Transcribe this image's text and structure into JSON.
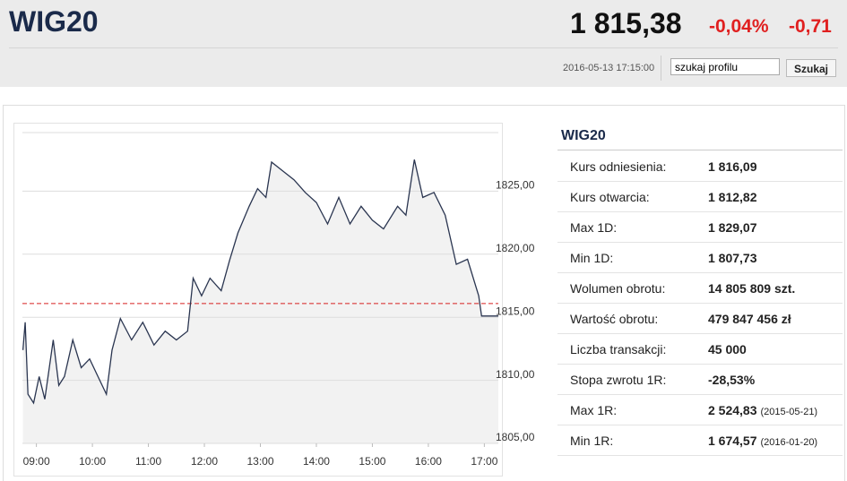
{
  "header": {
    "title": "WIG20",
    "price": "1 815,38",
    "change_pct": "-0,04%",
    "change_abs": "-0,71",
    "timestamp": "2016-05-13 17:15:00",
    "search_value": "szukaj profilu",
    "search_button": "Szukaj"
  },
  "chart_data": {
    "type": "line",
    "color": "#2a3550",
    "fill": "#f2f2f2",
    "reference": 1816.09,
    "reference_color": "#d62020",
    "xlim": [
      8.75,
      17.25
    ],
    "ylim": [
      1805,
      1830
    ],
    "xticks": [
      {
        "value": 9,
        "label": "09:00"
      },
      {
        "value": 10,
        "label": "10:00"
      },
      {
        "value": 11,
        "label": "11:00"
      },
      {
        "value": 12,
        "label": "12:00"
      },
      {
        "value": 13,
        "label": "13:00"
      },
      {
        "value": 14,
        "label": "14:00"
      },
      {
        "value": 15,
        "label": "15:00"
      },
      {
        "value": 16,
        "label": "16:00"
      },
      {
        "value": 17,
        "label": "17:00"
      }
    ],
    "yticks": [
      {
        "value": 1805,
        "label": "1805,00"
      },
      {
        "value": 1810,
        "label": "1810,00"
      },
      {
        "value": 1815,
        "label": "1815,00"
      },
      {
        "value": 1820,
        "label": "1820,00"
      },
      {
        "value": 1825,
        "label": "1825,00"
      }
    ],
    "grid": true,
    "x": [
      8.76,
      8.8,
      8.85,
      8.95,
      9.05,
      9.15,
      9.3,
      9.4,
      9.5,
      9.65,
      9.8,
      9.95,
      10.1,
      10.25,
      10.35,
      10.5,
      10.7,
      10.9,
      11.1,
      11.3,
      11.5,
      11.7,
      11.8,
      11.95,
      12.1,
      12.3,
      12.45,
      12.6,
      12.8,
      12.95,
      13.1,
      13.2,
      13.4,
      13.6,
      13.8,
      14.0,
      14.2,
      14.4,
      14.6,
      14.8,
      15.0,
      15.2,
      15.45,
      15.6,
      15.75,
      15.9,
      16.1,
      16.3,
      16.5,
      16.7,
      16.9,
      16.95,
      17.25
    ],
    "values": [
      1812.4,
      1814.6,
      1808.9,
      1808.2,
      1810.3,
      1808.5,
      1813.2,
      1809.6,
      1810.3,
      1813.2,
      1811.0,
      1811.7,
      1810.3,
      1808.9,
      1812.4,
      1814.9,
      1813.2,
      1814.6,
      1812.8,
      1813.9,
      1813.2,
      1813.9,
      1818.1,
      1816.7,
      1818.1,
      1817.1,
      1819.5,
      1821.7,
      1823.8,
      1825.2,
      1824.5,
      1827.3,
      1826.6,
      1825.9,
      1824.9,
      1824.1,
      1822.4,
      1824.5,
      1822.4,
      1823.8,
      1822.7,
      1822.0,
      1823.8,
      1823.1,
      1827.5,
      1824.5,
      1824.9,
      1823.1,
      1819.2,
      1819.6,
      1816.7,
      1815.1,
      1815.1
    ]
  },
  "panel": {
    "title": "WIG20",
    "rows": [
      {
        "label": "Kurs odniesienia:",
        "value": "1 816,09"
      },
      {
        "label": "Kurs otwarcia:",
        "value": "1 812,82"
      },
      {
        "label": "Max 1D:",
        "value": "1 829,07"
      },
      {
        "label": "Min 1D:",
        "value": "1 807,73"
      },
      {
        "label": "Wolumen obrotu:",
        "value": "14 805 809 szt."
      },
      {
        "label": "Wartość obrotu:",
        "value": "479 847 456 zł"
      },
      {
        "label": "Liczba transakcji:",
        "value": "45 000"
      },
      {
        "label": "Stopa zwrotu 1R:",
        "value": "-28,53%"
      },
      {
        "label": "Max 1R:",
        "value": "2 524,83",
        "note": "(2015-05-21)"
      },
      {
        "label": "Min 1R:",
        "value": "1 674,57",
        "note": "(2016-01-20)"
      }
    ]
  }
}
